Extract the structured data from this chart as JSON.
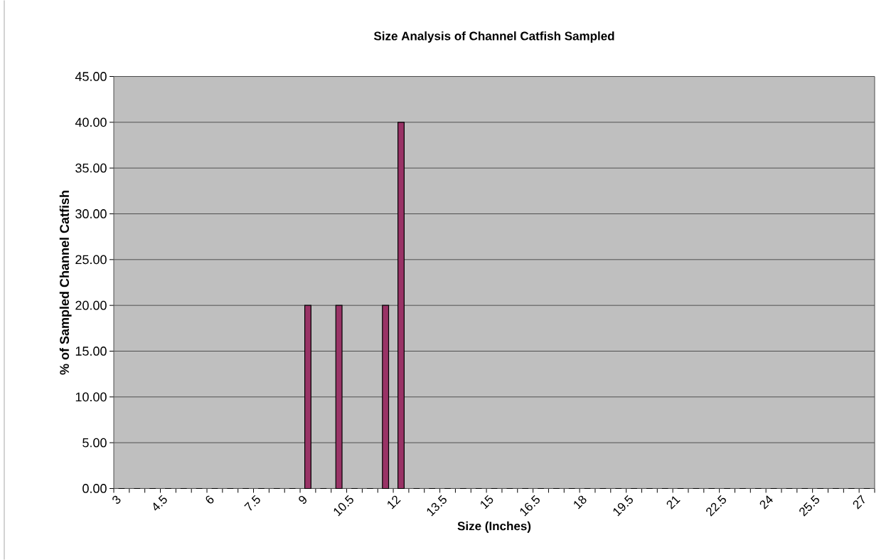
{
  "chart_data": {
    "type": "histogram",
    "title": "Size Analysis of Channel Catfish Sampled",
    "xlabel": "Size (Inches)",
    "ylabel": "% of Sampled Channel Catfish",
    "bins": [
      3,
      3.5,
      4,
      4.5,
      5,
      5.5,
      6,
      6.5,
      7,
      7.5,
      8,
      8.5,
      9,
      9.5,
      10,
      10.5,
      11,
      11.5,
      12,
      12.5,
      13,
      13.5,
      14,
      14.5,
      15,
      15.5,
      16,
      16.5,
      17,
      17.5,
      18,
      18.5,
      19,
      19.5,
      20,
      20.5,
      21,
      21.5,
      22,
      22.5,
      23,
      23.5,
      24,
      24.5,
      25,
      25.5,
      26,
      26.5,
      27,
      27.5
    ],
    "values": [
      0,
      0,
      0,
      0,
      0,
      0,
      0,
      0,
      0,
      0,
      0,
      0,
      20,
      0,
      20,
      0,
      0,
      20,
      40,
      0,
      0,
      0,
      0,
      0,
      0,
      0,
      0,
      0,
      0,
      0,
      0,
      0,
      0,
      0,
      0,
      0,
      0,
      0,
      0,
      0,
      0,
      0,
      0,
      0,
      0,
      0,
      0,
      0,
      0
    ],
    "color": "#993366",
    "xlim": [
      3,
      27.5
    ],
    "ylim": [
      0,
      45
    ],
    "xticks": [
      3,
      {
        "value": 3.5,
        "label": null
      },
      {
        "value": 4,
        "label": null
      },
      4.5,
      {
        "value": 5,
        "label": null
      },
      {
        "value": 5.5,
        "label": null
      },
      6,
      {
        "value": 6.5,
        "label": null
      },
      {
        "value": 7,
        "label": null
      },
      7.5,
      {
        "value": 8,
        "label": null
      },
      {
        "value": 8.5,
        "label": null
      },
      9,
      {
        "value": 9.5,
        "label": null
      },
      {
        "value": 10,
        "label": null
      },
      10.5,
      {
        "value": 11,
        "label": null
      },
      {
        "value": 11.5,
        "label": null
      },
      12,
      {
        "value": 12.5,
        "label": null
      },
      {
        "value": 13,
        "label": null
      },
      13.5,
      {
        "value": 14,
        "label": null
      },
      {
        "value": 14.5,
        "label": null
      },
      15,
      {
        "value": 15.5,
        "label": null
      },
      {
        "value": 16,
        "label": null
      },
      16.5,
      {
        "value": 17,
        "label": null
      },
      {
        "value": 17.5,
        "label": null
      },
      18,
      {
        "value": 18.5,
        "label": null
      },
      {
        "value": 19,
        "label": null
      },
      19.5,
      {
        "value": 20,
        "label": null
      },
      {
        "value": 20.5,
        "label": null
      },
      21,
      {
        "value": 21.5,
        "label": null
      },
      {
        "value": 22,
        "label": null
      },
      22.5,
      {
        "value": 23,
        "label": null
      },
      {
        "value": 23.5,
        "label": null
      },
      24,
      {
        "value": 24.5,
        "label": null
      },
      {
        "value": 25,
        "label": null
      },
      25.5,
      {
        "value": 26,
        "label": null
      },
      {
        "value": 26.5,
        "label": null
      },
      27,
      {
        "value": 27.5,
        "label": null
      }
    ],
    "yticks": [
      {
        "value": 0,
        "label": "0.00"
      },
      {
        "value": 5,
        "label": "5.00"
      },
      {
        "value": 10,
        "label": "10.00"
      },
      {
        "value": 15,
        "label": "15.00"
      },
      {
        "value": 20,
        "label": "20.00"
      },
      {
        "value": 25,
        "label": "25.00"
      },
      {
        "value": 30,
        "label": "30.00"
      },
      {
        "value": 35,
        "label": "35.00"
      },
      {
        "value": 40,
        "label": "40.00"
      },
      {
        "value": 45,
        "label": "45.00"
      }
    ],
    "grid": "y"
  }
}
